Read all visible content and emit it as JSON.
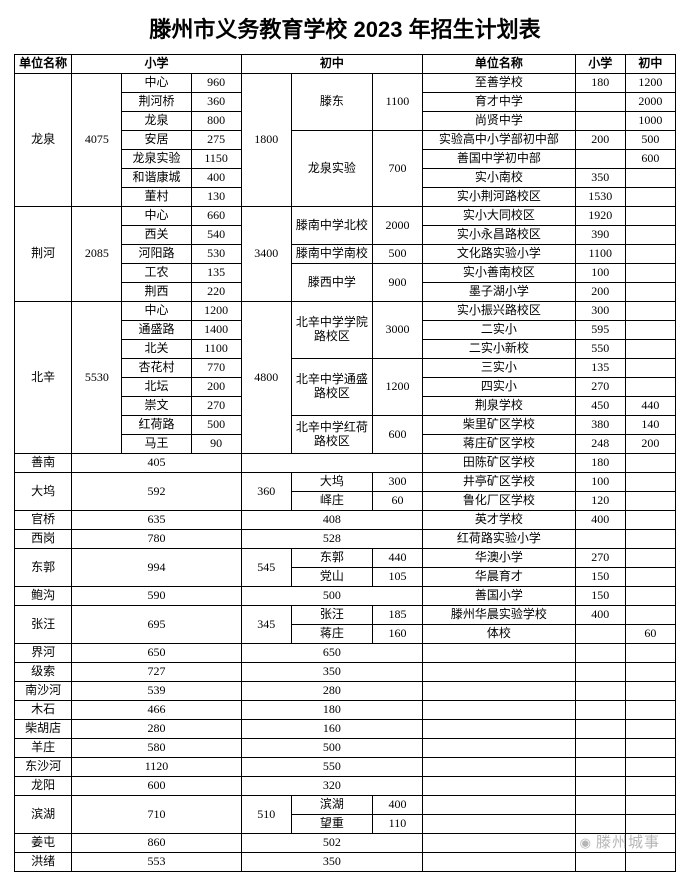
{
  "title": "滕州市义务教育学校 2023 年招生计划表",
  "watermark": "滕州城事",
  "headers": {
    "unit": "单位名称",
    "primary": "小学",
    "middle": "初中"
  },
  "left": {
    "longquan": {
      "name": "龙泉",
      "p_total": "4075",
      "m_total": "1800",
      "p": [
        {
          "n": "中心",
          "v": "960"
        },
        {
          "n": "荆河桥",
          "v": "360"
        },
        {
          "n": "龙泉",
          "v": "800"
        },
        {
          "n": "安居",
          "v": "275"
        },
        {
          "n": "龙泉实验",
          "v": "1150"
        },
        {
          "n": "和谐康城",
          "v": "400"
        },
        {
          "n": "董村",
          "v": "130"
        }
      ],
      "m": [
        {
          "n": "滕东",
          "v": "1100",
          "span": 3
        },
        {
          "n": "龙泉\n实验",
          "v": "700",
          "span": 4
        }
      ]
    },
    "jinghe": {
      "name": "荆河",
      "p_total": "2085",
      "m_total": "3400",
      "p": [
        {
          "n": "中心",
          "v": "660"
        },
        {
          "n": "西关",
          "v": "540"
        },
        {
          "n": "河阳路",
          "v": "530"
        },
        {
          "n": "工农",
          "v": "135"
        },
        {
          "n": "荆西",
          "v": "220"
        }
      ],
      "m": [
        {
          "n": "滕南中学北校",
          "v": "2000",
          "span": 2
        },
        {
          "n": "滕南中学南校",
          "v": "500",
          "span": 1
        },
        {
          "n": "滕西中学",
          "v": "900",
          "span": 2
        }
      ]
    },
    "beixin": {
      "name": "北辛",
      "p_total": "5530",
      "m_total": "4800",
      "p": [
        {
          "n": "中心",
          "v": "1200"
        },
        {
          "n": "通盛路",
          "v": "1400"
        },
        {
          "n": "北关",
          "v": "1100"
        },
        {
          "n": "杏花村",
          "v": "770"
        },
        {
          "n": "北坛",
          "v": "200"
        },
        {
          "n": "崇文",
          "v": "270"
        },
        {
          "n": "红荷路",
          "v": "500"
        },
        {
          "n": "马王",
          "v": "90"
        }
      ],
      "m": [
        {
          "n": "北辛中学学院路校区",
          "v": "3000",
          "span": 3
        },
        {
          "n": "北辛中学通盛路校区",
          "v": "1200",
          "span": 3
        },
        {
          "n": "北辛中学红荷路校区",
          "v": "600",
          "span": 2
        }
      ]
    },
    "simple": [
      {
        "n": "善南",
        "p": "405",
        "m": "",
        "msub": []
      },
      {
        "n": "大坞",
        "p": "592",
        "m": "360",
        "msub": [
          {
            "n": "大坞",
            "v": "300"
          },
          {
            "n": "峄庄",
            "v": "60"
          }
        ]
      },
      {
        "n": "官桥",
        "p": "635",
        "m": "408",
        "msub": []
      },
      {
        "n": "西岗",
        "p": "780",
        "m": "528",
        "msub": []
      },
      {
        "n": "东郭",
        "p": "994",
        "m": "545",
        "msub": [
          {
            "n": "东郭",
            "v": "440"
          },
          {
            "n": "党山",
            "v": "105"
          }
        ]
      },
      {
        "n": "鲍沟",
        "p": "590",
        "m": "500",
        "msub": []
      },
      {
        "n": "张汪",
        "p": "695",
        "m": "345",
        "msub": [
          {
            "n": "张汪",
            "v": "185"
          },
          {
            "n": "蒋庄",
            "v": "160"
          }
        ]
      },
      {
        "n": "界河",
        "p": "650",
        "m": "650",
        "msub": []
      },
      {
        "n": "级索",
        "p": "727",
        "m": "350",
        "msub": []
      },
      {
        "n": "南沙河",
        "p": "539",
        "m": "280",
        "msub": []
      },
      {
        "n": "木石",
        "p": "466",
        "m": "180",
        "msub": []
      },
      {
        "n": "柴胡店",
        "p": "280",
        "m": "160",
        "msub": []
      },
      {
        "n": "羊庄",
        "p": "580",
        "m": "500",
        "msub": []
      },
      {
        "n": "东沙河",
        "p": "1120",
        "m": "550",
        "msub": []
      },
      {
        "n": "龙阳",
        "p": "600",
        "m": "320",
        "msub": []
      },
      {
        "n": "滨湖",
        "p": "710",
        "m": "510",
        "msub": [
          {
            "n": "滨湖",
            "v": "400"
          },
          {
            "n": "望重",
            "v": "110"
          }
        ]
      },
      {
        "n": "姜屯",
        "p": "860",
        "m": "502",
        "msub": []
      },
      {
        "n": "洪绪",
        "p": "553",
        "m": "350",
        "msub": []
      }
    ]
  },
  "right": [
    {
      "n": "至善学校",
      "p": "180",
      "m": "1200"
    },
    {
      "n": "育才中学",
      "p": "",
      "m": "2000"
    },
    {
      "n": "尚贤中学",
      "p": "",
      "m": "1000"
    },
    {
      "n": "实验高中小学部初中部",
      "p": "200",
      "m": "500"
    },
    {
      "n": "善国中学初中部",
      "p": "",
      "m": "600"
    },
    {
      "n": "实小南校",
      "p": "350",
      "m": ""
    },
    {
      "n": "实小荆河路校区",
      "p": "1530",
      "m": ""
    },
    {
      "n": "实小大同校区",
      "p": "1920",
      "m": ""
    },
    {
      "n": "实小永昌路校区",
      "p": "390",
      "m": ""
    },
    {
      "n": "文化路实验小学",
      "p": "1100",
      "m": ""
    },
    {
      "n": "实小善南校区",
      "p": "100",
      "m": ""
    },
    {
      "n": "墨子湖小学",
      "p": "200",
      "m": ""
    },
    {
      "n": "实小振兴路校区",
      "p": "300",
      "m": ""
    },
    {
      "n": "二实小",
      "p": "595",
      "m": ""
    },
    {
      "n": "二实小新校",
      "p": "550",
      "m": ""
    },
    {
      "n": "三实小",
      "p": "135",
      "m": ""
    },
    {
      "n": "四实小",
      "p": "270",
      "m": ""
    },
    {
      "n": "荆泉学校",
      "p": "450",
      "m": "440"
    },
    {
      "n": "柴里矿区学校",
      "p": "380",
      "m": "140"
    },
    {
      "n": "蒋庄矿区学校",
      "p": "248",
      "m": "200"
    },
    {
      "n": "田陈矿区学校",
      "p": "180",
      "m": ""
    },
    {
      "n": "井亭矿区学校",
      "p": "100",
      "m": ""
    },
    {
      "n": "鲁化厂区学校",
      "p": "120",
      "m": ""
    },
    {
      "n": "英才学校",
      "p": "400",
      "m": ""
    },
    {
      "n": "红荷路实验小学",
      "p": "",
      "m": ""
    },
    {
      "n": "华澳小学",
      "p": "270",
      "m": ""
    },
    {
      "n": "华晨育才",
      "p": "150",
      "m": ""
    },
    {
      "n": "善国小学",
      "p": "150",
      "m": ""
    },
    {
      "n": "滕州华晨实验学校",
      "p": "400",
      "m": ""
    },
    {
      "n": "体校",
      "p": "",
      "m": "60"
    }
  ],
  "cols": {
    "c1": 48,
    "c2": 42,
    "c3": 58,
    "c4": 42,
    "c5": 42,
    "c6": 68,
    "c7": 42,
    "c8": 128,
    "c9": 42,
    "c10": 42
  }
}
